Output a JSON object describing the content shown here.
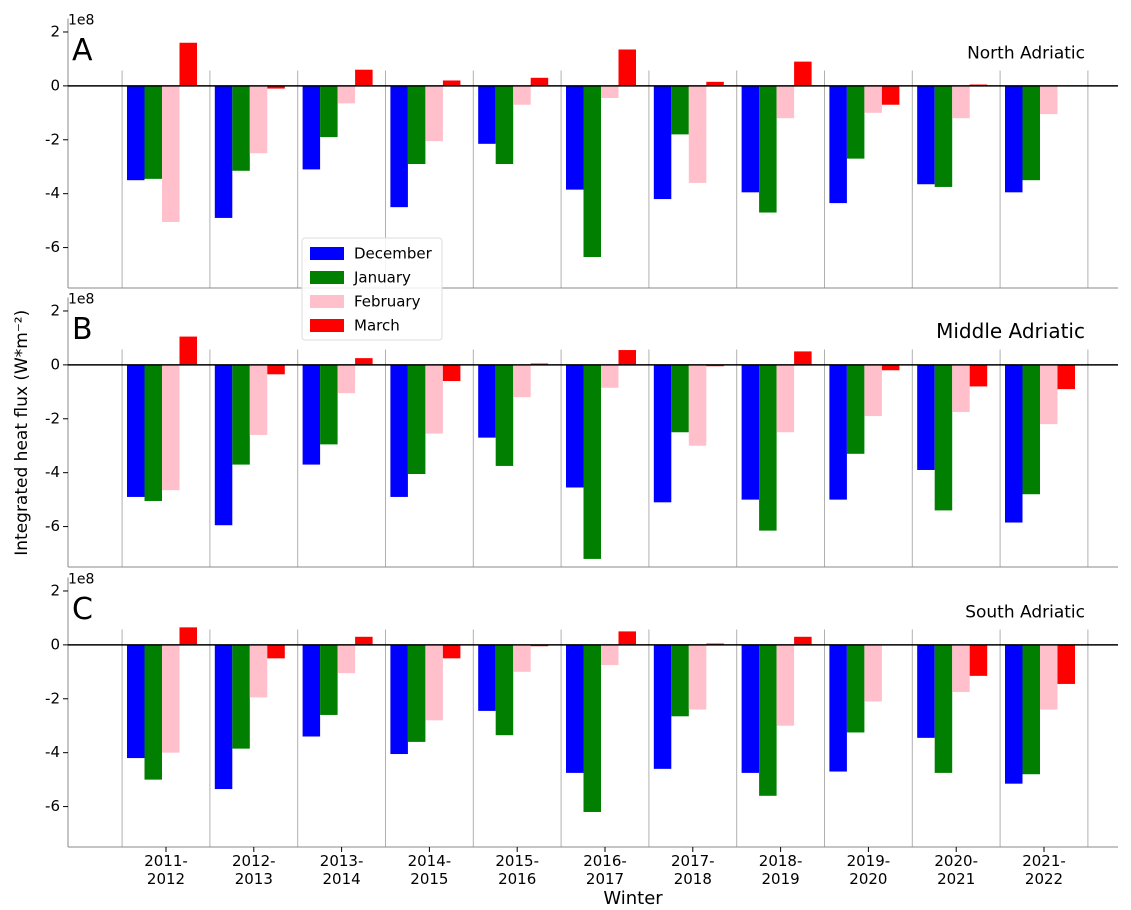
{
  "chart_data": [
    {
      "type": "bar",
      "panel_label": "A",
      "title": "North Adriatic",
      "offset_text": "1e8",
      "ylim": [
        -7.5,
        2.5
      ],
      "yticks": [
        -6,
        -4,
        -2,
        0,
        2
      ],
      "legend": "lower left",
      "series": [
        {
          "name": "December",
          "color": "#0000ff",
          "values": [
            -3.5,
            -4.9,
            -3.1,
            -4.5,
            -2.15,
            -3.85,
            -4.2,
            -3.95,
            -4.35,
            -3.65,
            -3.95
          ]
        },
        {
          "name": "January",
          "color": "#007f00",
          "values": [
            -3.45,
            -3.15,
            -1.9,
            -2.9,
            -2.9,
            -6.35,
            -1.8,
            -4.7,
            -2.7,
            -3.75,
            -3.5
          ]
        },
        {
          "name": "February",
          "color": "#ffc0cb",
          "values": [
            -5.05,
            -2.5,
            -0.65,
            -2.05,
            -0.7,
            -0.45,
            -3.6,
            -1.2,
            -1.0,
            -1.2,
            -1.05
          ]
        },
        {
          "name": "March",
          "color": "#ff0000",
          "values": [
            1.6,
            -0.1,
            0.6,
            0.2,
            0.3,
            1.35,
            0.15,
            0.9,
            -0.7,
            0.05,
            null
          ]
        }
      ]
    },
    {
      "type": "bar",
      "panel_label": "B",
      "title": "Middle Adriatic",
      "offset_text": "1e8",
      "ylim": [
        -7.5,
        2.5
      ],
      "yticks": [
        -6,
        -4,
        -2,
        0,
        2
      ],
      "y_label": "Integrated heat flux (W*m⁻²)",
      "series": [
        {
          "color": "#0000ff",
          "values": [
            -4.9,
            -5.95,
            -3.7,
            -4.9,
            -2.7,
            -4.55,
            -5.1,
            -5.0,
            -5.0,
            -3.9,
            -5.85
          ]
        },
        {
          "color": "#007f00",
          "values": [
            -5.05,
            -3.7,
            -2.95,
            -4.05,
            -3.75,
            -7.2,
            -2.5,
            -6.15,
            -3.3,
            -5.4,
            -4.8
          ]
        },
        {
          "color": "#ffc0cb",
          "values": [
            -4.65,
            -2.6,
            -1.05,
            -2.55,
            -1.2,
            -0.85,
            -3.0,
            -2.5,
            -1.9,
            -1.75,
            -2.2
          ]
        },
        {
          "color": "#ff0000",
          "values": [
            1.05,
            -0.35,
            0.25,
            -0.6,
            0.05,
            0.55,
            -0.05,
            0.5,
            -0.2,
            -0.8,
            -0.9
          ]
        }
      ]
    },
    {
      "type": "bar",
      "panel_label": "C",
      "title": "South Adriatic",
      "offset_text": "1e8",
      "ylim": [
        -7.5,
        2.5
      ],
      "yticks": [
        -6,
        -4,
        -2,
        0,
        2
      ],
      "x_label": "Winter",
      "categories": [
        "2011-\n2012",
        "2012-\n2013",
        "2013-\n2014",
        "2014-\n2015",
        "2015-\n2016",
        "2016-\n2017",
        "2017-\n2018",
        "2018-\n2019",
        "2019-\n2020",
        "2020-\n2021",
        "2021-\n2022"
      ],
      "series": [
        {
          "color": "#0000ff",
          "values": [
            -4.2,
            -5.35,
            -3.4,
            -4.05,
            -2.45,
            -4.75,
            -4.6,
            -4.75,
            -4.7,
            -3.45,
            -5.15
          ]
        },
        {
          "color": "#007f00",
          "values": [
            -5.0,
            -3.85,
            -2.6,
            -3.6,
            -3.35,
            -6.2,
            -2.65,
            -5.6,
            -3.25,
            -4.75,
            -4.8
          ]
        },
        {
          "color": "#ffc0cb",
          "values": [
            -4.0,
            -1.95,
            -1.05,
            -2.8,
            -1.0,
            -0.75,
            -2.4,
            -3.0,
            -2.1,
            -1.75,
            -2.4
          ]
        },
        {
          "color": "#ff0000",
          "values": [
            0.65,
            -0.5,
            0.3,
            -0.5,
            -0.05,
            0.5,
            0.05,
            0.3,
            null,
            -1.15,
            -1.45
          ]
        }
      ]
    }
  ]
}
